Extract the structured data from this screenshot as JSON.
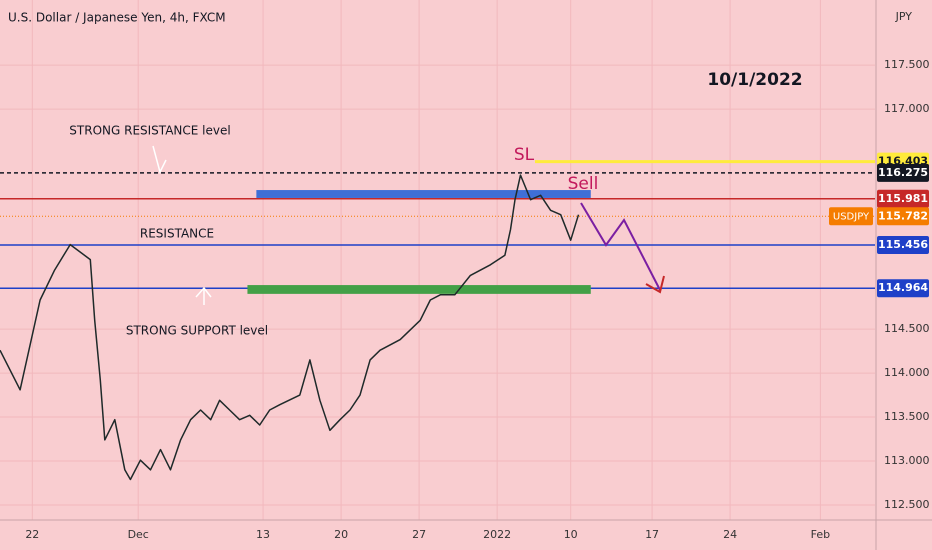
{
  "chart_data": {
    "type": "line",
    "title": "U.S. Dollar / Japanese Yen, 4h, FXCM",
    "currency": "JPY",
    "x": [
      0,
      1.8,
      3.6,
      4.9,
      6.3,
      8.1,
      8.5,
      9.0,
      9.4,
      10.3,
      11.2,
      11.7,
      12.6,
      13.5,
      14.4,
      15.3,
      16.2,
      17.1,
      18.0,
      18.9,
      19.7,
      20.6,
      21.5,
      22.4,
      23.3,
      24.2,
      25.1,
      26.9,
      27.8,
      28.7,
      29.6,
      30.5,
      31.4,
      32.3,
      33.2,
      34.1,
      35.9,
      37.7,
      38.6,
      39.5,
      40.8,
      42.2,
      44.0,
      45.3,
      45.8,
      46.2,
      46.7,
      47.6,
      48.5,
      49.4,
      50.3,
      51.2,
      51.9
    ],
    "series": [
      {
        "color": "#1f2a2a",
        "values": [
          114.26,
          113.81,
          114.83,
          115.17,
          115.46,
          115.29,
          114.6,
          113.92,
          113.24,
          113.47,
          112.9,
          112.79,
          113.01,
          112.9,
          113.13,
          112.9,
          113.24,
          113.47,
          113.58,
          113.47,
          113.69,
          113.58,
          113.47,
          113.52,
          113.41,
          113.58,
          113.64,
          113.75,
          114.15,
          113.69,
          113.35,
          113.47,
          113.58,
          113.75,
          114.15,
          114.26,
          114.38,
          114.6,
          114.83,
          114.89,
          114.89,
          115.11,
          115.23,
          115.34,
          115.63,
          115.97,
          116.25,
          115.97,
          116.02,
          115.85,
          115.8,
          115.51,
          115.8
        ]
      }
    ],
    "xlim": [
      0,
      78.5
    ],
    "ylim": [
      112.33,
      118.24
    ],
    "xticks": [
      {
        "value": 2.9,
        "label": "22"
      },
      {
        "value": 12.4,
        "label": "Dec"
      },
      {
        "value": 23.6,
        "label": "13"
      },
      {
        "value": 30.6,
        "label": "20"
      },
      {
        "value": 37.6,
        "label": "27"
      },
      {
        "value": 44.6,
        "label": "2022"
      },
      {
        "value": 51.2,
        "label": "10"
      },
      {
        "value": 58.5,
        "label": "17"
      },
      {
        "value": 65.5,
        "label": "24"
      },
      {
        "value": 73.6,
        "label": "Feb"
      }
    ],
    "yticks": [
      {
        "value": 112.5,
        "label": "112.500"
      },
      {
        "value": 113,
        "label": "113.000"
      },
      {
        "value": 113.5,
        "label": "113.500"
      },
      {
        "value": 114,
        "label": "114.000"
      },
      {
        "value": 114.5,
        "label": "114.500"
      },
      {
        "value": 117,
        "label": "117.000"
      },
      {
        "value": 117.5,
        "label": "117.500"
      }
    ],
    "grid": true,
    "levels": [
      {
        "value": 116.403,
        "color": "#ffeb3b"
      },
      {
        "value": 116.275,
        "color": "#131722"
      },
      {
        "value": 115.981,
        "color": "#c62828"
      },
      {
        "value": 115.782,
        "color": "#f57c00",
        "name": "USDJPY"
      },
      {
        "value": 115.456,
        "color": "#1e40c8"
      },
      {
        "value": 114.964,
        "color": "#1e40c8"
      }
    ],
    "zones": [
      {
        "from": 23.0,
        "to": 53.0,
        "top": 116.08,
        "bottom": 115.99,
        "color": "#3f6fd6"
      },
      {
        "from": 22.2,
        "to": 53.0,
        "top": 115.0,
        "bottom": 114.9,
        "color": "#43a047"
      }
    ],
    "annotations": [
      "10/1/2022",
      "STRONG RESISTANCE level",
      "RESISTANCE",
      "STRONG SUPPORT level",
      "SL",
      "Sell"
    ]
  }
}
